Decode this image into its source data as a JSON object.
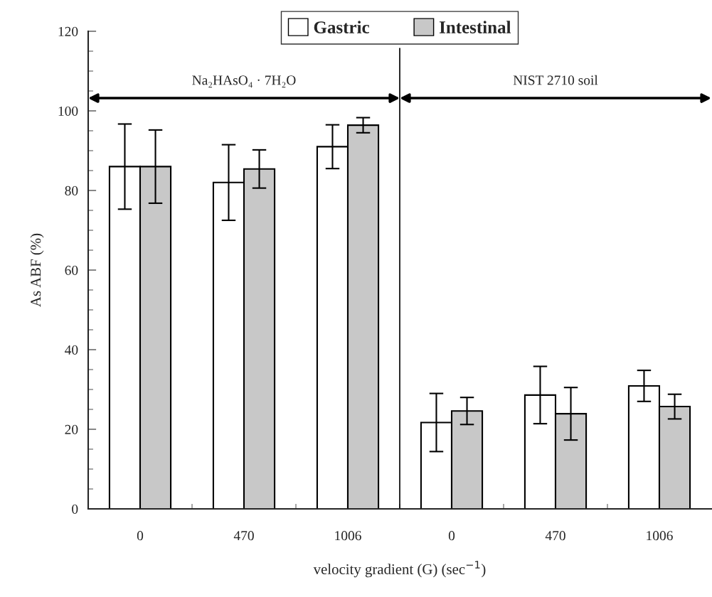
{
  "chart_data": {
    "type": "bar",
    "categories": [
      "0",
      "470",
      "1006",
      "0",
      "470",
      "1006"
    ],
    "series": [
      {
        "name": "Gastric",
        "color": "#ffffff",
        "values": [
          86,
          82,
          91,
          21.7,
          28.6,
          30.9
        ],
        "errors": [
          10.7,
          9.5,
          5.5,
          7.3,
          7.2,
          3.9
        ]
      },
      {
        "name": "Intestinal",
        "color": "#c8c8c8",
        "values": [
          86,
          85.4,
          96.4,
          24.6,
          23.9,
          25.7
        ],
        "errors": [
          9.2,
          4.8,
          1.9,
          3.4,
          6.6,
          3.1
        ]
      }
    ],
    "xlabel": "velocity gradient (G) (sec$^{−1}$)",
    "ylabel": "As ABF (%)",
    "ylim": [
      0,
      120
    ],
    "yticks": [
      0,
      20,
      40,
      60,
      80,
      100,
      120
    ],
    "annotations": [
      "Na₂HAsO₄ · 7H₂O",
      "NIST 2710 soil"
    ],
    "legend": "top",
    "grid": false
  }
}
